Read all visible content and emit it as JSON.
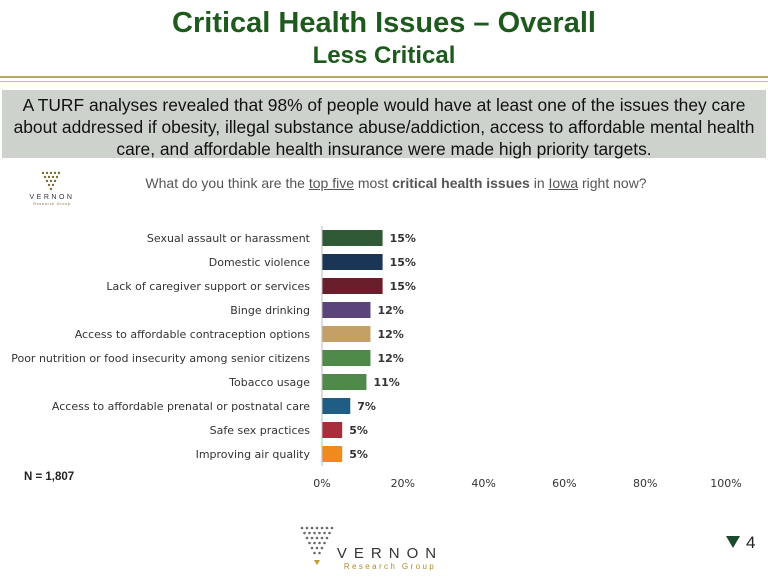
{
  "header": {
    "title": "Critical Health Issues – Overall",
    "subtitle": "Less Critical"
  },
  "banner": {
    "text": "A TURF analyses revealed that 98% of people would have at least one of the issues they care about addressed if obesity, illegal substance abuse/addiction, access to affordable mental health care, and affordable health insurance were made high priority targets."
  },
  "question": {
    "part1": "What do you think are the ",
    "part2": "top five",
    "part3": " most ",
    "part4": "critical health issues",
    "part5": " in ",
    "part6": "Iowa",
    "part7": " right now?"
  },
  "logo": {
    "name": "VERNON",
    "tagline": "Research Group"
  },
  "sample": "N = 1,807",
  "page_number": "4",
  "chart_data": {
    "type": "bar",
    "orientation": "horizontal",
    "categories": [
      "Sexual assault or harassment",
      "Domestic violence",
      "Lack of caregiver support or services",
      "Binge drinking",
      "Access to affordable contraception options",
      "Poor nutrition or food insecurity among senior citizens",
      "Tobacco usage",
      "Access to affordable prenatal or postnatal care",
      "Safe sex practices",
      "Improving air quality"
    ],
    "values": [
      15,
      15,
      15,
      12,
      12,
      12,
      11,
      7,
      5,
      5
    ],
    "value_labels": [
      "15%",
      "15%",
      "15%",
      "12%",
      "12%",
      "12%",
      "11%",
      "7%",
      "5%",
      "5%"
    ],
    "colors": [
      "#2f5a35",
      "#1b3556",
      "#6a1d2a",
      "#5b4479",
      "#c4a067",
      "#4f8a4b",
      "#4f8a4b",
      "#1f5d85",
      "#a72e3a",
      "#f08a1c"
    ],
    "xlim": [
      0,
      100
    ],
    "x_ticks": [
      "0%",
      "20%",
      "40%",
      "60%",
      "80%",
      "100%"
    ],
    "grid": false
  }
}
